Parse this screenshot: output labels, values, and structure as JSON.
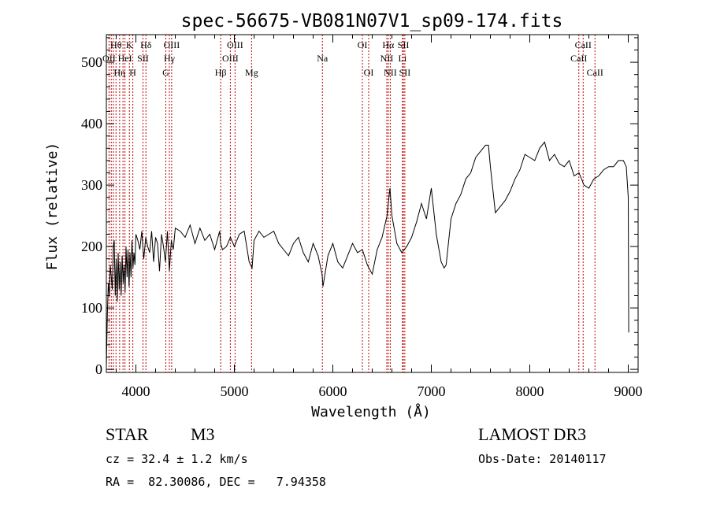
{
  "chart_data": {
    "type": "line",
    "title": "spec-56675-VB081N07V1_sp09-174.fits",
    "xlabel": "Wavelength (Å)",
    "ylabel": "Flux (relative)",
    "xlim": [
      3700,
      9100
    ],
    "ylim": [
      -5,
      545
    ],
    "xticks": [
      4000,
      5000,
      6000,
      7000,
      8000,
      9000
    ],
    "yticks": [
      0,
      100,
      200,
      300,
      400,
      500
    ],
    "grid": false,
    "series": [
      {
        "name": "spectrum",
        "x": [
          3700,
          3710,
          3720,
          3730,
          3740,
          3750,
          3760,
          3770,
          3780,
          3790,
          3800,
          3810,
          3820,
          3830,
          3840,
          3850,
          3860,
          3870,
          3880,
          3890,
          3900,
          3910,
          3920,
          3930,
          3940,
          3950,
          3960,
          3970,
          3980,
          3990,
          4000,
          4020,
          4040,
          4060,
          4080,
          4100,
          4120,
          4140,
          4160,
          4180,
          4200,
          4220,
          4240,
          4260,
          4280,
          4300,
          4320,
          4340,
          4360,
          4380,
          4400,
          4450,
          4500,
          4550,
          4600,
          4650,
          4700,
          4750,
          4800,
          4850,
          4861,
          4880,
          4920,
          4960,
          5000,
          5050,
          5100,
          5150,
          5180,
          5200,
          5250,
          5300,
          5350,
          5400,
          5450,
          5500,
          5550,
          5600,
          5650,
          5700,
          5750,
          5800,
          5850,
          5890,
          5900,
          5950,
          6000,
          6050,
          6100,
          6150,
          6200,
          6250,
          6300,
          6350,
          6400,
          6450,
          6500,
          6550,
          6563,
          6580,
          6600,
          6650,
          6700,
          6750,
          6800,
          6850,
          6900,
          6950,
          7000,
          7050,
          7100,
          7130,
          7150,
          7200,
          7250,
          7300,
          7350,
          7400,
          7450,
          7500,
          7550,
          7580,
          7600,
          7630,
          7650,
          7700,
          7750,
          7800,
          7850,
          7900,
          7950,
          8000,
          8050,
          8100,
          8150,
          8200,
          8250,
          8300,
          8350,
          8400,
          8450,
          8500,
          8550,
          8600,
          8650,
          8700,
          8750,
          8800,
          8850,
          8900,
          8950,
          8980,
          9000,
          9005
        ],
        "values": [
          5,
          90,
          140,
          120,
          170,
          150,
          130,
          200,
          210,
          120,
          180,
          110,
          190,
          130,
          175,
          120,
          185,
          140,
          170,
          125,
          200,
          150,
          195,
          135,
          190,
          150,
          210,
          165,
          190,
          170,
          220,
          210,
          195,
          225,
          180,
          215,
          200,
          190,
          225,
          175,
          215,
          205,
          160,
          220,
          200,
          175,
          225,
          160,
          210,
          195,
          230,
          225,
          215,
          235,
          205,
          230,
          210,
          220,
          195,
          225,
          205,
          195,
          200,
          215,
          200,
          220,
          225,
          175,
          165,
          210,
          225,
          215,
          220,
          225,
          205,
          195,
          185,
          205,
          215,
          190,
          175,
          205,
          185,
          155,
          135,
          185,
          205,
          175,
          165,
          185,
          205,
          190,
          195,
          170,
          155,
          195,
          215,
          250,
          270,
          295,
          250,
          205,
          190,
          200,
          215,
          240,
          270,
          245,
          295,
          220,
          175,
          165,
          170,
          245,
          270,
          285,
          310,
          320,
          345,
          355,
          365,
          365,
          330,
          285,
          255,
          265,
          275,
          290,
          310,
          325,
          350,
          345,
          340,
          360,
          370,
          340,
          350,
          335,
          330,
          340,
          315,
          320,
          300,
          295,
          310,
          315,
          325,
          330,
          330,
          340,
          340,
          330,
          280,
          60
        ]
      }
    ],
    "line_markers": [
      {
        "x": 3727,
        "label": "OII",
        "row": 1
      },
      {
        "x": 3750,
        "label": "",
        "row": 0
      },
      {
        "x": 3771,
        "label": "",
        "row": 0
      },
      {
        "x": 3798,
        "label": "Hθ",
        "row": 0
      },
      {
        "x": 3835,
        "label": "Hη",
        "row": 2
      },
      {
        "x": 3869,
        "label": "",
        "row": 0
      },
      {
        "x": 3889,
        "label": "HeI",
        "row": 1
      },
      {
        "x": 3934,
        "label": "K",
        "row": 0
      },
      {
        "x": 3969,
        "label": "H",
        "row": 2
      },
      {
        "x": 4072,
        "label": "SII",
        "row": 1
      },
      {
        "x": 4102,
        "label": "Hδ",
        "row": 0
      },
      {
        "x": 4304,
        "label": "G",
        "row": 2
      },
      {
        "x": 4340,
        "label": "Hγ",
        "row": 1
      },
      {
        "x": 4363,
        "label": "OIII",
        "row": 0
      },
      {
        "x": 4861,
        "label": "Hβ",
        "row": 2
      },
      {
        "x": 4959,
        "label": "OIII",
        "row": 1
      },
      {
        "x": 5007,
        "label": "OIII",
        "row": 0
      },
      {
        "x": 5175,
        "label": "Mg",
        "row": 2
      },
      {
        "x": 5894,
        "label": "Na",
        "row": 1
      },
      {
        "x": 6300,
        "label": "OI",
        "row": 0
      },
      {
        "x": 6364,
        "label": "OI",
        "row": 2
      },
      {
        "x": 6548,
        "label": "NII",
        "row": 1
      },
      {
        "x": 6563,
        "label": "Hα",
        "row": 0
      },
      {
        "x": 6583,
        "label": "NII",
        "row": 2
      },
      {
        "x": 6707,
        "label": "Li",
        "row": 1
      },
      {
        "x": 6716,
        "label": "SII",
        "row": 0
      },
      {
        "x": 6731,
        "label": "SII",
        "row": 2
      },
      {
        "x": 8498,
        "label": "CaII",
        "row": 1
      },
      {
        "x": 8542,
        "label": "CaII",
        "row": 0
      },
      {
        "x": 8662,
        "label": "CaII",
        "row": 2
      }
    ]
  },
  "info": {
    "class": "STAR",
    "subclass": "M3",
    "survey": "LAMOST DR3",
    "redshift": "cz = 32.4 ± 1.2 km/s",
    "obs_date": "Obs-Date: 20140117",
    "coords": "RA =  82.30086, DEC =   7.94358"
  }
}
